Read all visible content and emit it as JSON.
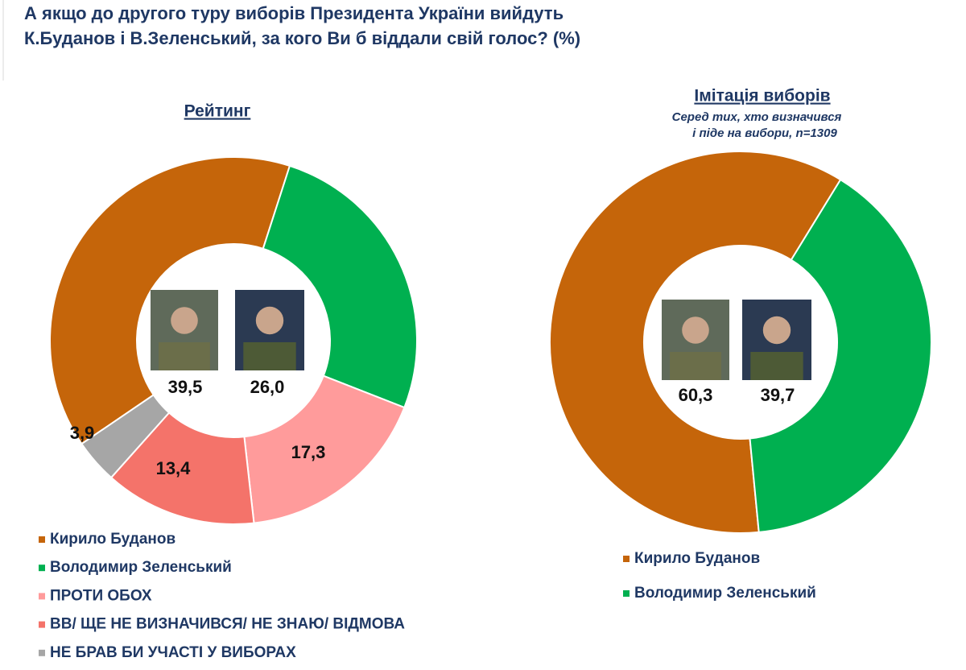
{
  "title": [
    "А якщо до другого туру виборів Президента України вийдуть",
    "К.Буданов і В.Зеленський, за кого Ви б віддали свій голос? (%)"
  ],
  "chart_data": [
    {
      "type": "donut",
      "title": "Рейтинг",
      "categories": [
        "Кирило Буданов",
        "Володимир Зеленський",
        "ПРОТИ ОБОХ",
        "ВВ/ ЩЕ НЕ ВИЗНАЧИВСЯ/ НЕ ЗНАЮ/ ВІДМОВА",
        "НЕ БРАВ БИ УЧАСТІ У ВИБОРАХ"
      ],
      "values": [
        39.5,
        26.0,
        17.3,
        13.4,
        3.9
      ],
      "value_labels": [
        "39,5",
        "26,0",
        "17,3",
        "13,4",
        "3,9"
      ],
      "colors": [
        "#c5650a",
        "#00b050",
        "#ff9b9b",
        "#f4736a",
        "#a6a6a6"
      ]
    },
    {
      "type": "donut",
      "title": "Імітація виборів",
      "subtitle": [
        "Серед тих, хто визначився",
        "і піде на вибори, n=1309"
      ],
      "categories": [
        "Кирило Буданов",
        "Володимир Зеленський"
      ],
      "values": [
        60.3,
        39.7
      ],
      "value_labels": [
        "60,3",
        "39,7"
      ],
      "colors": [
        "#c5650a",
        "#00b050"
      ]
    }
  ]
}
